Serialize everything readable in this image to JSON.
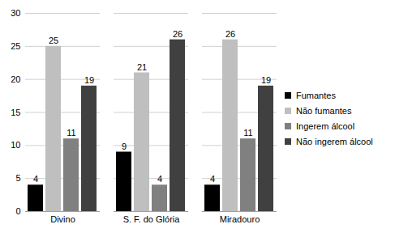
{
  "chart_data": {
    "type": "bar",
    "categories": [
      "Divino",
      "S. F. do Glória",
      "Miradouro"
    ],
    "series": [
      {
        "name": "Fumantes",
        "color": "#000000",
        "values": [
          4,
          9,
          4
        ]
      },
      {
        "name": "Não fumantes",
        "color": "#bfbfbf",
        "values": [
          25,
          21,
          26
        ]
      },
      {
        "name": "Ingerem álcool",
        "color": "#808080",
        "values": [
          11,
          4,
          11
        ]
      },
      {
        "name": "Não ingerem álcool",
        "color": "#404040",
        "values": [
          19,
          26,
          19
        ]
      }
    ],
    "ylim": [
      0,
      30
    ],
    "yticks": [
      0,
      5,
      10,
      15,
      20,
      25,
      30
    ],
    "grid": true,
    "legend": "right",
    "data_labels": true
  }
}
